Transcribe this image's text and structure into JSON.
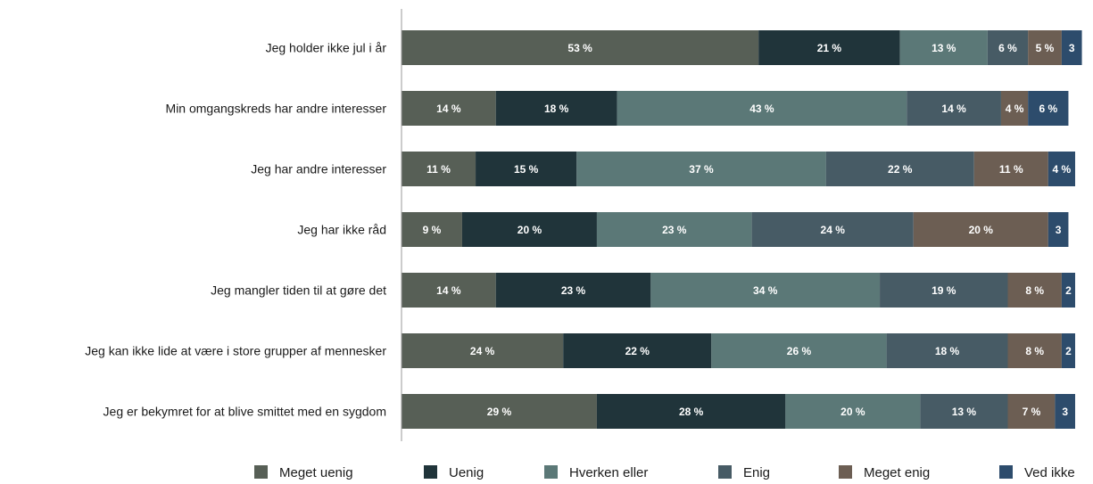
{
  "chart_data": {
    "type": "bar",
    "orientation": "horizontal",
    "stacked": true,
    "categories": [
      "Jeg holder ikke jul i år",
      "Min omgangskreds har andre interesser",
      "Jeg har andre interesser",
      "Jeg har ikke råd",
      "Jeg mangler tiden til at gøre det",
      "Jeg kan ikke lide at være i store grupper af mennesker",
      "Jeg er bekymret for at blive smittet med en sygdom"
    ],
    "series": [
      {
        "name": "Meget uenig",
        "color": "#575f56",
        "values": [
          53,
          14,
          11,
          9,
          14,
          24,
          29
        ]
      },
      {
        "name": "Uenig",
        "color": "#20343a",
        "values": [
          21,
          18,
          15,
          20,
          23,
          22,
          28
        ]
      },
      {
        "name": "Hverken eller",
        "color": "#5b7877",
        "values": [
          13,
          43,
          37,
          23,
          34,
          26,
          20
        ]
      },
      {
        "name": "Enig",
        "color": "#475b65",
        "values": [
          6,
          14,
          22,
          24,
          19,
          18,
          13
        ]
      },
      {
        "name": "Meget enig",
        "color": "#6c5e53",
        "values": [
          5,
          4,
          11,
          20,
          8,
          8,
          7
        ]
      },
      {
        "name": "Ved ikke",
        "color": "#2d4c6c",
        "values": [
          3,
          6,
          4,
          3,
          2,
          2,
          3
        ]
      }
    ],
    "data_labels": [
      [
        "53 %",
        "21 %",
        "13 %",
        "6 %",
        "5 %",
        "3"
      ],
      [
        "14 %",
        "18 %",
        "43 %",
        "14 %",
        "4 %",
        "6 %"
      ],
      [
        "11 %",
        "15 %",
        "37 %",
        "22 %",
        "11 %",
        "4 %"
      ],
      [
        "9 %",
        "20 %",
        "23 %",
        "24 %",
        "20 %",
        "3"
      ],
      [
        "14 %",
        "23 %",
        "34 %",
        "19 %",
        "8 %",
        "2"
      ],
      [
        "24 %",
        "22 %",
        "26 %",
        "18 %",
        "8 %",
        "2"
      ],
      [
        "29 %",
        "28 %",
        "20 %",
        "13 %",
        "7 %",
        "3"
      ]
    ],
    "xlim": [
      0,
      100
    ],
    "grid": false,
    "legend_position": "bottom"
  }
}
